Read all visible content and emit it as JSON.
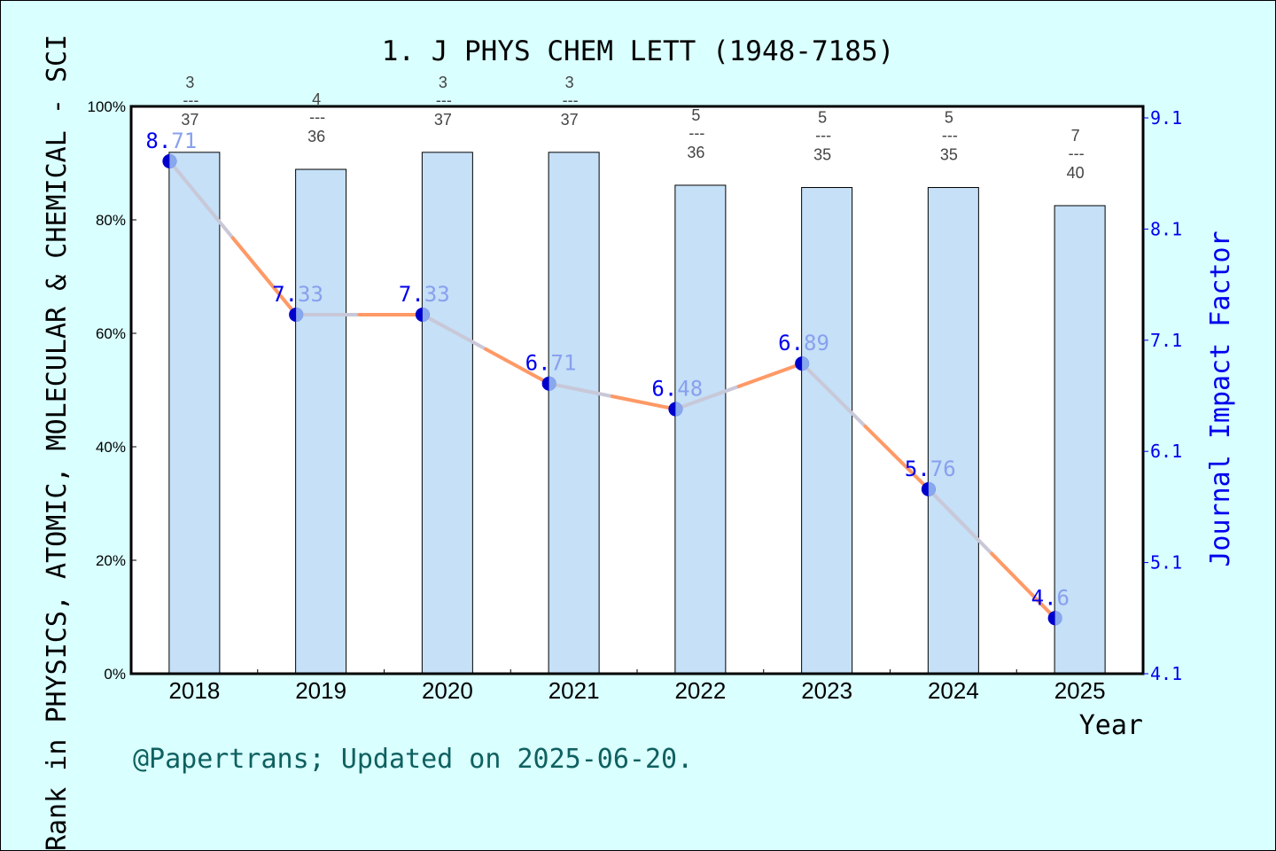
{
  "chart_data": {
    "type": "bar+line",
    "title": "1. J PHYS CHEM LETT (1948-7185)",
    "xlabel": "Year",
    "ylabel_left": "Rank in PHYSICS, ATOMIC, MOLECULAR & CHEMICAL - SCI",
    "ylabel_right": "Journal Impact Factor",
    "categories": [
      "2018",
      "2019",
      "2020",
      "2021",
      "2022",
      "2023",
      "2024",
      "2025"
    ],
    "left_axis": {
      "range": [
        0,
        100
      ],
      "ticks": [
        "0%",
        "20%",
        "40%",
        "60%",
        "80%",
        "100%"
      ]
    },
    "right_axis": {
      "range": [
        4.1,
        9.1
      ],
      "ticks": [
        "4.1",
        "5.1",
        "6.1",
        "7.1",
        "8.1",
        "9.1"
      ]
    },
    "bars": {
      "rank": [
        3,
        4,
        3,
        3,
        5,
        5,
        5,
        7
      ],
      "total": [
        37,
        36,
        37,
        37,
        36,
        35,
        35,
        40
      ],
      "percentile": [
        91.9,
        88.9,
        91.9,
        91.9,
        86.1,
        85.7,
        85.7,
        82.5
      ],
      "color": "#c5e0f7"
    },
    "line": {
      "values": [
        8.71,
        7.33,
        7.33,
        6.71,
        6.48,
        6.89,
        5.76,
        4.6
      ],
      "labels": [
        "8.71",
        "7.33",
        "7.33",
        "6.71",
        "6.48",
        "6.89",
        "5.76",
        "4.6"
      ],
      "colors": [
        "#ff9966",
        "#c8c8d8"
      ],
      "marker_color": "#0000cc",
      "label_color": "#0000ee"
    },
    "grid": false,
    "footer": "@Papertrans; Updated on 2025-06-20."
  }
}
